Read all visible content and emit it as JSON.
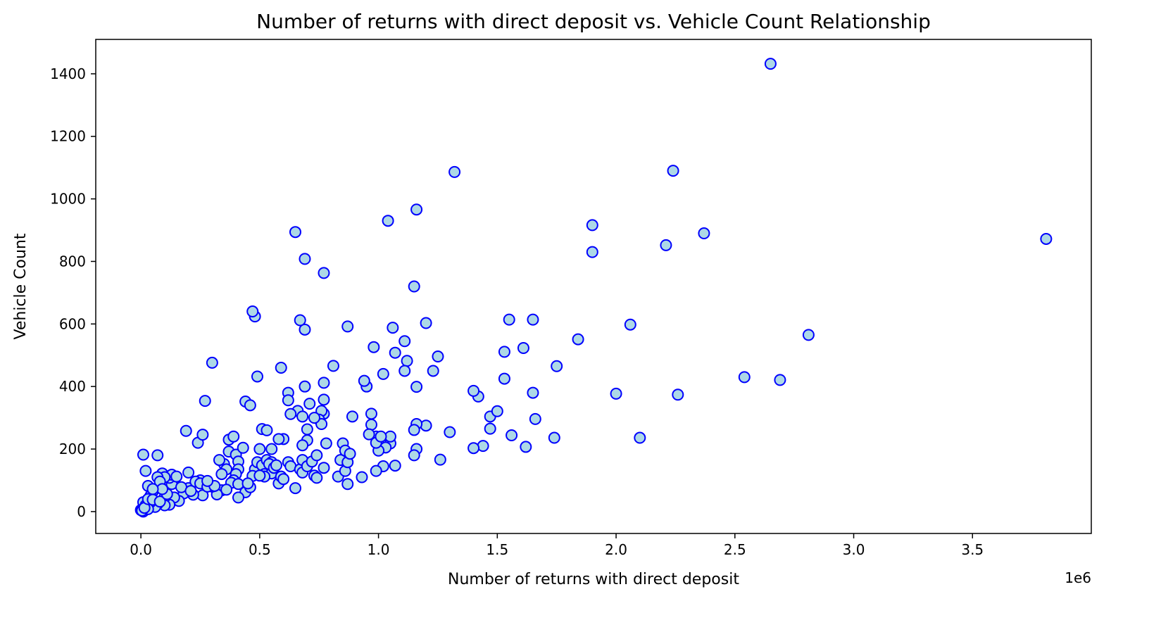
{
  "chart_data": {
    "type": "scatter",
    "title": "Number of returns with direct deposit vs. Vehicle Count Relationship",
    "xlabel": "Number of returns with direct deposit",
    "ylabel": "Vehicle Count",
    "x_offset_label": "1e6",
    "xlim": [
      -0.19,
      4.0
    ],
    "ylim": [
      -70,
      1510
    ],
    "x_ticks": [
      0.0,
      0.5,
      1.0,
      1.5,
      2.0,
      2.5,
      3.0,
      3.5
    ],
    "x_tick_labels": [
      "0.0",
      "0.5",
      "1.0",
      "1.5",
      "2.0",
      "2.5",
      "3.0",
      "3.5"
    ],
    "y_ticks": [
      0,
      200,
      400,
      600,
      800,
      1000,
      1200,
      1400
    ],
    "y_tick_labels": [
      "0",
      "200",
      "400",
      "600",
      "800",
      "1000",
      "1200",
      "1400"
    ],
    "grid": false,
    "marker_face": "#add8e6",
    "marker_edge": "#0000ff",
    "points": [
      [
        2.65,
        1432
      ],
      [
        3.81,
        872
      ],
      [
        2.24,
        1090
      ],
      [
        1.32,
        1086
      ],
      [
        2.37,
        890
      ],
      [
        1.9,
        916
      ],
      [
        1.9,
        830
      ],
      [
        2.21,
        852
      ],
      [
        1.16,
        966
      ],
      [
        1.04,
        930
      ],
      [
        0.65,
        894
      ],
      [
        0.69,
        808
      ],
      [
        0.77,
        763
      ],
      [
        1.15,
        720
      ],
      [
        2.81,
        565
      ],
      [
        2.06,
        598
      ],
      [
        1.84,
        551
      ],
      [
        1.65,
        614
      ],
      [
        1.55,
        614
      ],
      [
        1.61,
        523
      ],
      [
        1.53,
        511
      ],
      [
        1.75,
        465
      ],
      [
        2.54,
        430
      ],
      [
        2.69,
        421
      ],
      [
        2.0,
        377
      ],
      [
        2.26,
        374
      ],
      [
        2.1,
        236
      ],
      [
        1.74,
        236
      ],
      [
        1.66,
        296
      ],
      [
        1.65,
        380
      ],
      [
        1.53,
        425
      ],
      [
        1.47,
        304
      ],
      [
        1.5,
        321
      ],
      [
        1.47,
        265
      ],
      [
        1.56,
        244
      ],
      [
        1.62,
        207
      ],
      [
        1.44,
        210
      ],
      [
        1.4,
        203
      ],
      [
        1.42,
        368
      ],
      [
        1.4,
        386
      ],
      [
        1.3,
        254
      ],
      [
        1.26,
        166
      ],
      [
        1.25,
        496
      ],
      [
        1.23,
        450
      ],
      [
        1.2,
        603
      ],
      [
        1.2,
        275
      ],
      [
        1.16,
        280
      ],
      [
        1.16,
        200
      ],
      [
        1.15,
        180
      ],
      [
        1.15,
        261
      ],
      [
        1.16,
        399
      ],
      [
        1.12,
        482
      ],
      [
        1.11,
        450
      ],
      [
        1.11,
        545
      ],
      [
        1.07,
        508
      ],
      [
        1.06,
        588
      ],
      [
        1.02,
        440
      ],
      [
        0.98,
        526
      ],
      [
        1.07,
        147
      ],
      [
        1.05,
        218
      ],
      [
        1.05,
        240
      ],
      [
        1.02,
        145
      ],
      [
        1.03,
        205
      ],
      [
        1.0,
        195
      ],
      [
        0.99,
        130
      ],
      [
        0.99,
        240
      ],
      [
        0.97,
        313
      ],
      [
        0.97,
        278
      ],
      [
        0.96,
        247
      ],
      [
        0.95,
        400
      ],
      [
        0.94,
        418
      ],
      [
        0.99,
        220
      ],
      [
        1.01,
        240
      ],
      [
        0.87,
        592
      ],
      [
        0.89,
        304
      ],
      [
        0.81,
        466
      ],
      [
        0.77,
        412
      ],
      [
        0.77,
        358
      ],
      [
        0.77,
        313
      ],
      [
        0.76,
        322
      ],
      [
        0.75,
        294
      ],
      [
        0.76,
        280
      ],
      [
        0.73,
        300
      ],
      [
        0.71,
        345
      ],
      [
        0.7,
        263
      ],
      [
        0.7,
        228
      ],
      [
        0.69,
        400
      ],
      [
        0.69,
        582
      ],
      [
        0.67,
        612
      ],
      [
        0.68,
        212
      ],
      [
        0.66,
        322
      ],
      [
        0.68,
        304
      ],
      [
        0.62,
        380
      ],
      [
        0.62,
        356
      ],
      [
        0.63,
        312
      ],
      [
        0.6,
        232
      ],
      [
        0.58,
        232
      ],
      [
        0.59,
        460
      ],
      [
        0.49,
        432
      ],
      [
        0.48,
        624
      ],
      [
        0.47,
        640
      ],
      [
        0.44,
        352
      ],
      [
        0.46,
        340
      ],
      [
        0.51,
        264
      ],
      [
        0.53,
        260
      ],
      [
        0.55,
        200
      ],
      [
        0.5,
        200
      ],
      [
        0.3,
        476
      ],
      [
        0.27,
        354
      ],
      [
        0.19,
        258
      ],
      [
        0.24,
        220
      ],
      [
        0.26,
        246
      ],
      [
        0.37,
        230
      ],
      [
        0.39,
        240
      ],
      [
        0.37,
        192
      ],
      [
        0.4,
        182
      ],
      [
        0.43,
        204
      ],
      [
        0.35,
        152
      ],
      [
        0.33,
        165
      ],
      [
        0.36,
        135
      ],
      [
        0.41,
        160
      ],
      [
        0.41,
        135
      ],
      [
        0.4,
        120
      ],
      [
        0.39,
        100
      ],
      [
        0.34,
        120
      ],
      [
        0.38,
        92
      ],
      [
        0.41,
        88
      ],
      [
        0.44,
        62
      ],
      [
        0.46,
        78
      ],
      [
        0.41,
        45
      ],
      [
        0.34,
        68
      ],
      [
        0.32,
        55
      ],
      [
        0.3,
        80
      ],
      [
        0.25,
        100
      ],
      [
        0.26,
        52
      ],
      [
        0.22,
        54
      ],
      [
        0.2,
        75
      ],
      [
        0.18,
        58
      ],
      [
        0.16,
        34
      ],
      [
        0.14,
        45
      ],
      [
        0.12,
        22
      ],
      [
        0.13,
        88
      ],
      [
        0.12,
        108
      ],
      [
        0.13,
        118
      ],
      [
        0.15,
        112
      ],
      [
        0.2,
        125
      ],
      [
        0.09,
        122
      ],
      [
        0.1,
        110
      ],
      [
        0.07,
        180
      ],
      [
        0.01,
        182
      ],
      [
        0.02,
        130
      ],
      [
        0.07,
        110
      ],
      [
        0.08,
        96
      ],
      [
        0.03,
        82
      ],
      [
        0.05,
        64
      ],
      [
        0.04,
        50
      ],
      [
        0.1,
        46
      ],
      [
        0.1,
        20
      ],
      [
        0.07,
        24
      ],
      [
        0.06,
        15
      ],
      [
        0.04,
        30
      ],
      [
        0.01,
        30
      ],
      [
        0.02,
        20
      ],
      [
        0.0,
        5
      ],
      [
        0.01,
        0
      ],
      [
        0.02,
        10
      ],
      [
        0.03,
        8
      ],
      [
        0.005,
        3
      ],
      [
        0.015,
        12
      ],
      [
        0.03,
        40
      ],
      [
        0.05,
        38
      ],
      [
        0.08,
        32
      ],
      [
        0.11,
        56
      ],
      [
        0.09,
        72
      ],
      [
        0.05,
        72
      ],
      [
        0.17,
        78
      ],
      [
        0.21,
        66
      ],
      [
        0.23,
        96
      ],
      [
        0.25,
        90
      ],
      [
        0.28,
        80
      ],
      [
        0.48,
        135
      ],
      [
        0.49,
        158
      ],
      [
        0.51,
        148
      ],
      [
        0.52,
        120
      ],
      [
        0.53,
        165
      ],
      [
        0.55,
        158
      ],
      [
        0.55,
        122
      ],
      [
        0.58,
        90
      ],
      [
        0.59,
        112
      ],
      [
        0.6,
        104
      ],
      [
        0.62,
        158
      ],
      [
        0.63,
        145
      ],
      [
        0.65,
        75
      ],
      [
        0.67,
        135
      ],
      [
        0.68,
        125
      ],
      [
        0.68,
        165
      ],
      [
        0.7,
        145
      ],
      [
        0.72,
        160
      ],
      [
        0.73,
        115
      ],
      [
        0.74,
        108
      ],
      [
        0.74,
        180
      ],
      [
        0.77,
        140
      ],
      [
        0.78,
        218
      ],
      [
        0.83,
        112
      ],
      [
        0.84,
        165
      ],
      [
        0.85,
        218
      ],
      [
        0.86,
        130
      ],
      [
        0.86,
        195
      ],
      [
        0.87,
        158
      ],
      [
        0.88,
        185
      ],
      [
        0.87,
        88
      ],
      [
        0.93,
        110
      ],
      [
        0.47,
        114
      ],
      [
        0.52,
        112
      ],
      [
        0.54,
        152
      ],
      [
        0.56,
        140
      ],
      [
        0.57,
        148
      ],
      [
        0.5,
        115
      ],
      [
        0.45,
        90
      ],
      [
        0.36,
        70
      ],
      [
        0.31,
        82
      ],
      [
        0.28,
        98
      ]
    ]
  }
}
